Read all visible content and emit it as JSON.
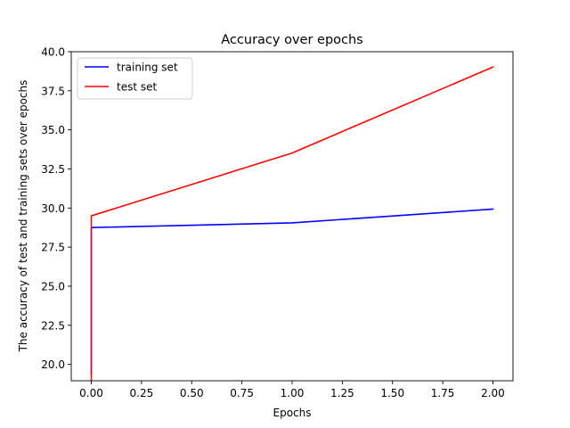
{
  "chart_data": {
    "type": "line",
    "title": "Accuracy over epochs",
    "xlabel": "Epochs",
    "ylabel": "The accuracy of test and training sets over epochs",
    "xlim": [
      -0.1,
      2.1
    ],
    "ylim": [
      18.95,
      40.0
    ],
    "xticks": [
      0.0,
      0.25,
      0.5,
      0.75,
      1.0,
      1.25,
      1.5,
      1.75,
      2.0
    ],
    "xtick_labels": [
      "0.00",
      "0.25",
      "0.50",
      "0.75",
      "1.00",
      "1.25",
      "1.50",
      "1.75",
      "2.00"
    ],
    "yticks": [
      20.0,
      22.5,
      25.0,
      27.5,
      30.0,
      32.5,
      35.0,
      37.5,
      40.0
    ],
    "ytick_labels": [
      "20.0",
      "22.5",
      "25.0",
      "27.5",
      "30.0",
      "32.5",
      "35.0",
      "37.5",
      "40.0"
    ],
    "grid": false,
    "legend_position": "top-left",
    "series": [
      {
        "name": "training set",
        "color": "#0000ff",
        "x": [
          0.0,
          0.0,
          1.0,
          2.0
        ],
        "y": [
          19.4,
          28.75,
          29.05,
          29.93
        ]
      },
      {
        "name": "test set",
        "color": "#ff0000",
        "x": [
          0.0,
          0.0,
          1.0,
          2.0
        ],
        "y": [
          19.0,
          29.5,
          33.52,
          39.02
        ]
      }
    ]
  }
}
